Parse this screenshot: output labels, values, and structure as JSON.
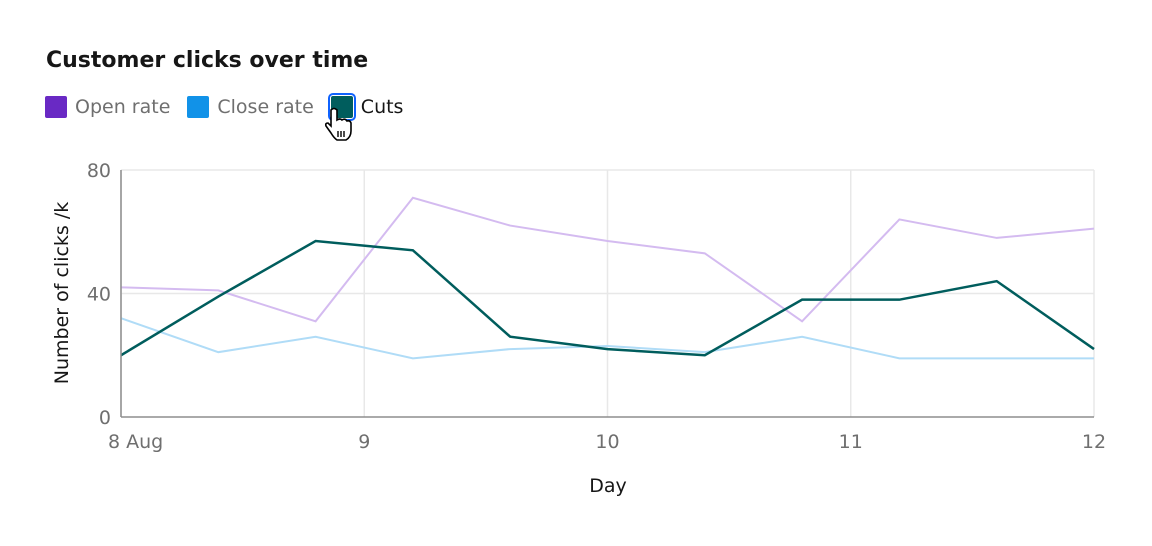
{
  "chart_data": {
    "type": "line",
    "title": "Customer clicks over time",
    "xlabel": "Day",
    "ylabel": "Number of clicks /k",
    "ylim": [
      0,
      80
    ],
    "yticks": [
      "0",
      "40",
      "80"
    ],
    "xticks": [
      "8 Aug",
      "9",
      "10",
      "11",
      "12"
    ],
    "xlim": [
      0,
      4
    ],
    "grid": true,
    "legend_position": "top-left",
    "x": [
      0,
      0.4,
      0.8,
      1.2,
      1.6,
      2.0,
      2.4,
      2.8,
      3.2,
      3.6,
      4.0
    ],
    "series": [
      {
        "name": "Open rate",
        "color": "#6929c4",
        "line_color": "#d4bbf0",
        "values": [
          42,
          41,
          31,
          71,
          62,
          57,
          53,
          31,
          64,
          58,
          61
        ]
      },
      {
        "name": "Close rate",
        "color": "#1192e8",
        "line_color": "#b0dcf7",
        "values": [
          32,
          21,
          26,
          19,
          22,
          23,
          21,
          26,
          19,
          19,
          19
        ]
      },
      {
        "name": "Cuts",
        "color": "#005d5d",
        "line_color": "#005d5d",
        "values": [
          20,
          39,
          57,
          54,
          26,
          22,
          20,
          38,
          38,
          44,
          22
        ],
        "active": true
      }
    ]
  }
}
